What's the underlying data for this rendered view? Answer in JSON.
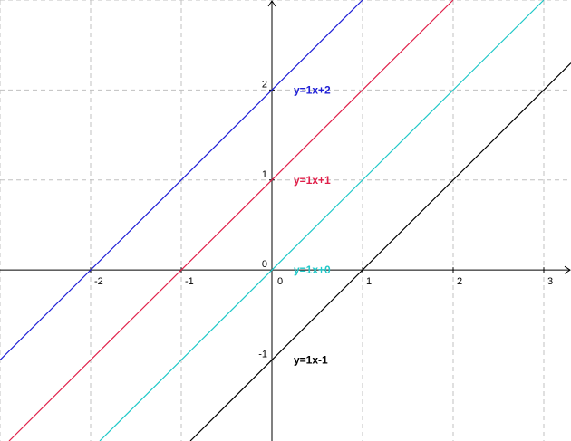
{
  "chart_data": {
    "type": "line",
    "title": "",
    "xlabel": "",
    "ylabel": "",
    "xlim": [
      -3,
      3.3
    ],
    "ylim": [
      -1.9,
      3
    ],
    "grid": true,
    "x_ticks": [
      {
        "value": -2,
        "label": "-2"
      },
      {
        "value": -1,
        "label": "-1"
      },
      {
        "value": 0,
        "label": "0"
      },
      {
        "value": 1,
        "label": "1"
      },
      {
        "value": 2,
        "label": "2"
      },
      {
        "value": 3,
        "label": "3"
      }
    ],
    "y_ticks": [
      {
        "value": -1,
        "label": "-1"
      },
      {
        "value": 0,
        "label": "0"
      },
      {
        "value": 1,
        "label": "1"
      },
      {
        "value": 2,
        "label": "2"
      }
    ],
    "series": [
      {
        "name": "y=1x+2",
        "slope": 1,
        "intercept": 2,
        "color": "#1f1fd6"
      },
      {
        "name": "y=1x+1",
        "slope": 1,
        "intercept": 1,
        "color": "#e0204a"
      },
      {
        "name": "y=1x+0",
        "slope": 1,
        "intercept": 0,
        "color": "#20c8c8"
      },
      {
        "name": "y=1x-1",
        "slope": 1,
        "intercept": -1,
        "color": "#000000"
      }
    ]
  }
}
